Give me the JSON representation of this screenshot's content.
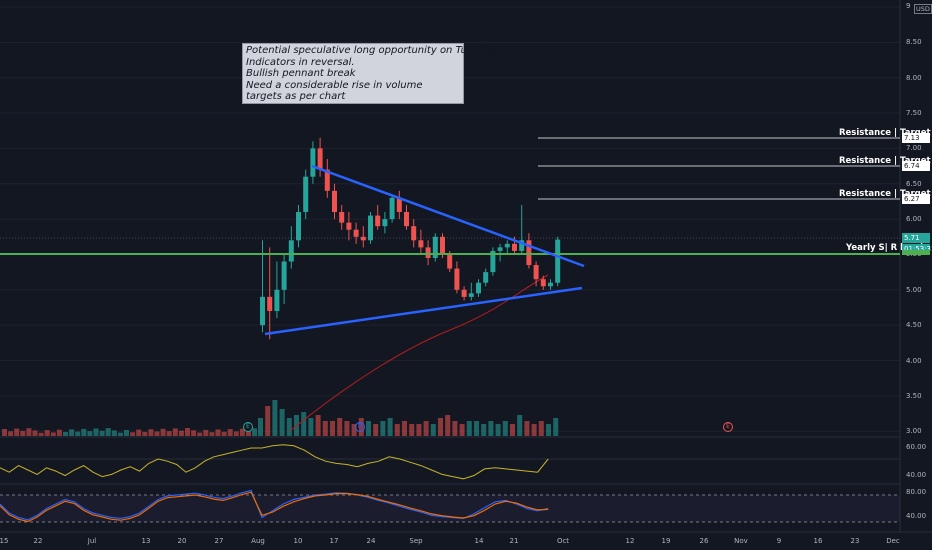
{
  "currency": "USD",
  "note": {
    "lines": [
      "Potential speculative long opportunity on Tuesday",
      "Indicators in reversal.",
      "Bullish pennant break",
      "Need a considerable rise in volume",
      "targets as per chart"
    ]
  },
  "levels": [
    {
      "label": "Resistance | Target",
      "tag": "7.13"
    },
    {
      "label": "Resistance | Target",
      "tag": "6.74"
    },
    {
      "label": "Resistance | Target",
      "tag": "6.27"
    },
    {
      "label": "Yearly  S| R level",
      "tag": ""
    }
  ],
  "last_price": {
    "value": "5.71",
    "countdown": "01:53:31"
  },
  "y_ticks": [
    "9",
    "8.50",
    "8.00",
    "7.50",
    "7.00",
    "6.50",
    "6.00",
    "5.50",
    "5.00",
    "4.50",
    "4.00",
    "3.50",
    "3.00"
  ],
  "x_ticks": [
    "15",
    "22",
    "Jul",
    "13",
    "20",
    "27",
    "Aug",
    "10",
    "17",
    "24",
    "Sep",
    "14",
    "21",
    "Oct",
    "12",
    "19",
    "26",
    "Nov",
    "9",
    "16",
    "23",
    "Dec"
  ],
  "rsi_ticks": [
    "60.00",
    "40.00"
  ],
  "stoch_ticks": [
    "80.00",
    "40.00"
  ],
  "events": [
    "E",
    "D",
    "E"
  ],
  "colors": {
    "background": "#131722",
    "up": "#26a69a",
    "down": "#ef5350",
    "trendline": "#2962ff",
    "level": "#ffffff",
    "yearly_level": "#4caf50",
    "rsi": "#c9b32a",
    "stoch_k": "#2962ff",
    "stoch_d": "#ef6c00",
    "ma": "#b71c1c"
  },
  "chart_data": {
    "type": "candlestick",
    "ylim": [
      3.0,
      9.0
    ],
    "candles": [
      {
        "o": 4.5,
        "h": 5.7,
        "l": 4.4,
        "c": 4.9
      },
      {
        "o": 4.9,
        "h": 5.6,
        "l": 4.3,
        "c": 4.7
      },
      {
        "o": 4.7,
        "h": 5.4,
        "l": 4.6,
        "c": 5.0
      },
      {
        "o": 5.0,
        "h": 5.5,
        "l": 4.8,
        "c": 5.4
      },
      {
        "o": 5.4,
        "h": 5.9,
        "l": 5.3,
        "c": 5.7
      },
      {
        "o": 5.7,
        "h": 6.2,
        "l": 5.6,
        "c": 6.1
      },
      {
        "o": 6.1,
        "h": 6.7,
        "l": 6.0,
        "c": 6.6
      },
      {
        "o": 6.6,
        "h": 7.1,
        "l": 6.5,
        "c": 7.0
      },
      {
        "o": 7.0,
        "h": 7.15,
        "l": 6.6,
        "c": 6.7
      },
      {
        "o": 6.7,
        "h": 6.85,
        "l": 6.3,
        "c": 6.4
      },
      {
        "o": 6.4,
        "h": 6.5,
        "l": 6.0,
        "c": 6.1
      },
      {
        "o": 6.1,
        "h": 6.2,
        "l": 5.85,
        "c": 5.95
      },
      {
        "o": 5.95,
        "h": 6.1,
        "l": 5.7,
        "c": 5.85
      },
      {
        "o": 5.85,
        "h": 5.95,
        "l": 5.65,
        "c": 5.75
      },
      {
        "o": 5.75,
        "h": 5.9,
        "l": 5.6,
        "c": 5.7
      },
      {
        "o": 5.7,
        "h": 6.1,
        "l": 5.65,
        "c": 6.05
      },
      {
        "o": 6.05,
        "h": 6.2,
        "l": 5.85,
        "c": 5.9
      },
      {
        "o": 5.9,
        "h": 6.1,
        "l": 5.8,
        "c": 6.0
      },
      {
        "o": 6.0,
        "h": 6.35,
        "l": 5.95,
        "c": 6.3
      },
      {
        "o": 6.3,
        "h": 6.4,
        "l": 6.0,
        "c": 6.1
      },
      {
        "o": 6.1,
        "h": 6.2,
        "l": 5.85,
        "c": 5.9
      },
      {
        "o": 5.9,
        "h": 6.0,
        "l": 5.6,
        "c": 5.7
      },
      {
        "o": 5.7,
        "h": 5.85,
        "l": 5.5,
        "c": 5.6
      },
      {
        "o": 5.6,
        "h": 5.7,
        "l": 5.35,
        "c": 5.45
      },
      {
        "o": 5.45,
        "h": 5.8,
        "l": 5.4,
        "c": 5.75
      },
      {
        "o": 5.75,
        "h": 5.8,
        "l": 5.45,
        "c": 5.5
      },
      {
        "o": 5.5,
        "h": 5.55,
        "l": 5.25,
        "c": 5.3
      },
      {
        "o": 5.3,
        "h": 5.4,
        "l": 4.95,
        "c": 5.0
      },
      {
        "o": 5.0,
        "h": 5.05,
        "l": 4.85,
        "c": 4.9
      },
      {
        "o": 4.9,
        "h": 5.1,
        "l": 4.85,
        "c": 4.95
      },
      {
        "o": 4.95,
        "h": 5.15,
        "l": 4.9,
        "c": 5.1
      },
      {
        "o": 5.1,
        "h": 5.3,
        "l": 5.05,
        "c": 5.25
      },
      {
        "o": 5.25,
        "h": 5.6,
        "l": 5.2,
        "c": 5.55
      },
      {
        "o": 5.55,
        "h": 5.65,
        "l": 5.4,
        "c": 5.6
      },
      {
        "o": 5.6,
        "h": 5.7,
        "l": 5.5,
        "c": 5.65
      },
      {
        "o": 5.65,
        "h": 5.75,
        "l": 5.5,
        "c": 5.55
      },
      {
        "o": 5.55,
        "h": 6.2,
        "l": 5.5,
        "c": 5.7
      },
      {
        "o": 5.7,
        "h": 5.8,
        "l": 5.3,
        "c": 5.35
      },
      {
        "o": 5.35,
        "h": 5.4,
        "l": 5.05,
        "c": 5.15
      },
      {
        "o": 5.15,
        "h": 5.2,
        "l": 5.0,
        "c": 5.05
      },
      {
        "o": 5.05,
        "h": 5.15,
        "l": 5.0,
        "c": 5.1
      },
      {
        "o": 5.1,
        "h": 5.75,
        "l": 5.05,
        "c": 5.71
      }
    ],
    "volume": [
      0.6,
      1.0,
      1.2,
      0.9,
      0.6,
      0.7,
      0.8,
      0.6,
      0.7,
      0.5,
      0.5,
      0.6,
      0.5,
      0.4,
      0.6,
      0.5,
      0.4,
      0.5,
      0.6,
      0.4,
      0.5,
      0.4,
      0.4,
      0.5,
      0.4,
      0.6,
      0.7,
      0.5,
      0.4,
      0.5,
      0.5,
      0.4,
      0.5,
      0.4,
      0.5,
      0.4,
      0.7,
      0.5,
      0.4,
      0.5,
      0.4,
      0.6
    ],
    "rsi": [
      70,
      72,
      73,
      72,
      68,
      62,
      58,
      56,
      55,
      53,
      56,
      58,
      62,
      60,
      57,
      54,
      50,
      46,
      44,
      42,
      45,
      51,
      52,
      51,
      50,
      49,
      48,
      60
    ],
    "stoch_k": [
      30,
      45,
      60,
      70,
      75,
      80,
      82,
      85,
      84,
      80,
      75,
      68,
      62,
      55,
      48,
      42,
      35,
      32,
      30,
      28,
      38,
      52,
      65,
      68,
      60,
      50,
      45,
      50
    ],
    "stoch_d": [
      35,
      42,
      55,
      65,
      72,
      78,
      80,
      83,
      83,
      81,
      77,
      70,
      64,
      58,
      51,
      45,
      38,
      34,
      31,
      29,
      34,
      46,
      60,
      66,
      62,
      53,
      47,
      48
    ]
  }
}
